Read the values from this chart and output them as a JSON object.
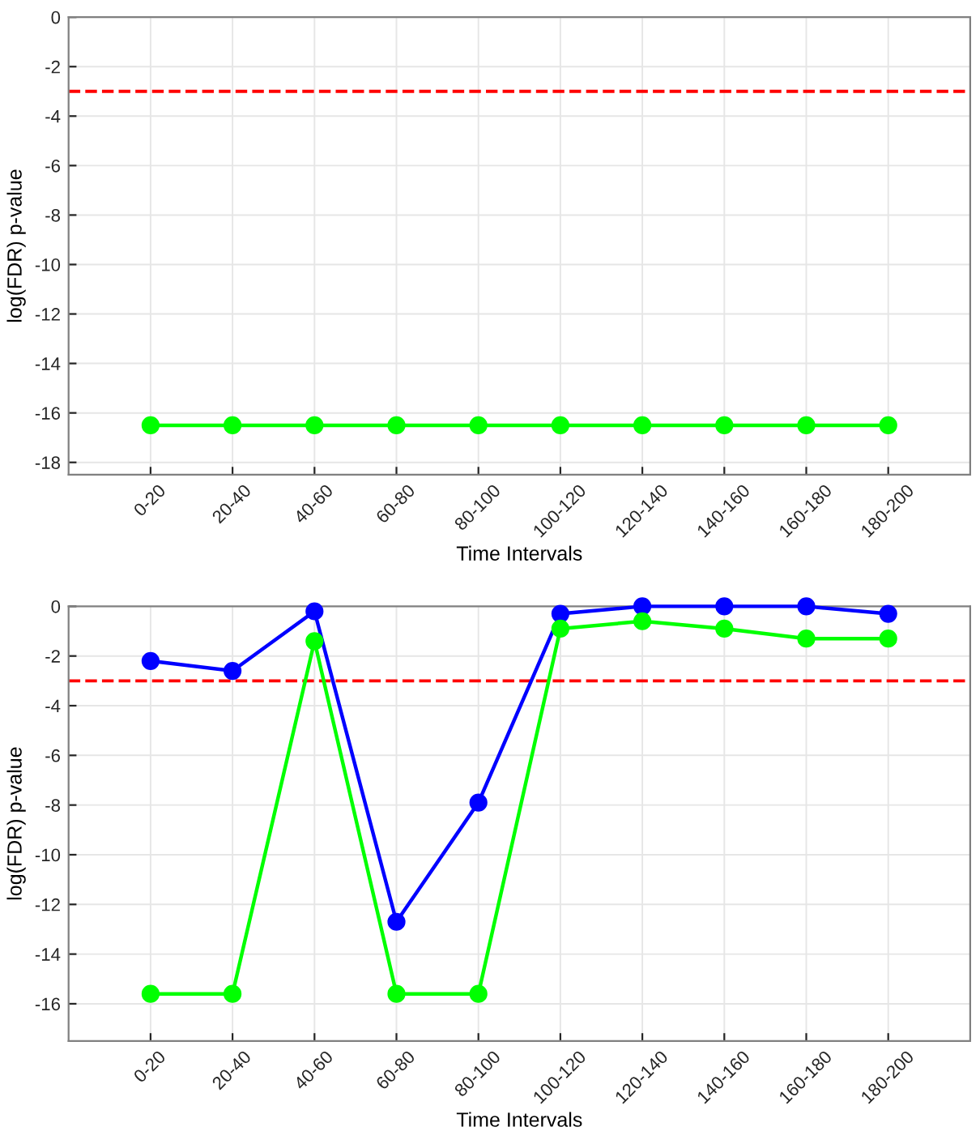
{
  "chart_data": [
    {
      "type": "line",
      "xlabel": "Time Intervals",
      "ylabel": "log(FDR) p-value",
      "categories": [
        "0-20",
        "20-40",
        "40-60",
        "60-80",
        "80-100",
        "100-120",
        "120-140",
        "140-160",
        "160-180",
        "180-200"
      ],
      "series": [
        {
          "color": "#00ff00",
          "values": [
            -16.5,
            -16.5,
            -16.5,
            -16.5,
            -16.5,
            -16.5,
            -16.5,
            -16.5,
            -16.5,
            -16.5
          ]
        }
      ],
      "ylim": [
        -18.5,
        0
      ],
      "yticks": [
        -18,
        -16,
        -14,
        -12,
        -10,
        -8,
        -6,
        -4,
        -2,
        0
      ],
      "ref_lines": [
        {
          "axis": "y",
          "value": -3,
          "color": "#ff0000",
          "line_style": "dashed"
        }
      ],
      "grid": true,
      "marker": "circle",
      "line_style": "solid"
    },
    {
      "type": "line",
      "xlabel": "Time Intervals",
      "ylabel": "log(FDR) p-value",
      "categories": [
        "0-20",
        "20-40",
        "40-60",
        "60-80",
        "80-100",
        "100-120",
        "120-140",
        "140-160",
        "160-180",
        "180-200"
      ],
      "series": [
        {
          "color": "#0000ff",
          "values": [
            -2.2,
            -2.6,
            -0.2,
            -12.7,
            -7.9,
            -0.3,
            0,
            0,
            0,
            -0.3
          ]
        },
        {
          "color": "#00ff00",
          "values": [
            -15.6,
            -15.6,
            -1.4,
            -15.6,
            -15.6,
            -0.9,
            -0.6,
            -0.9,
            -1.3,
            -1.3
          ]
        }
      ],
      "ylim": [
        -17.5,
        0
      ],
      "yticks": [
        -16,
        -14,
        -12,
        -10,
        -8,
        -6,
        -4,
        -2,
        0
      ],
      "ref_lines": [
        {
          "axis": "y",
          "value": -3,
          "color": "#ff0000",
          "line_style": "dashed"
        }
      ],
      "grid": true,
      "marker": "circle",
      "line_style": "solid"
    }
  ]
}
